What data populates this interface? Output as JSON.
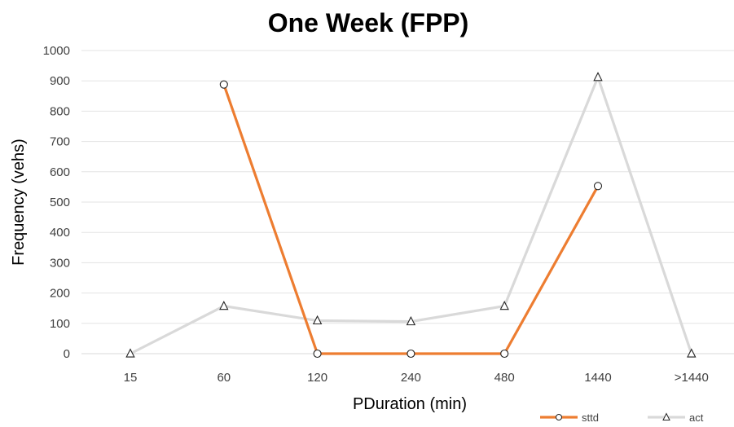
{
  "chart_data": {
    "type": "line",
    "title": "One Week (FPP)",
    "xlabel": "PDuration (min)",
    "ylabel": "Frequency (vehs)",
    "categories": [
      "15",
      "60",
      "120",
      "240",
      "480",
      "1440",
      ">1440"
    ],
    "ylim": [
      0,
      1000
    ],
    "yticks": [
      0,
      100,
      200,
      300,
      400,
      500,
      600,
      700,
      800,
      900,
      1000
    ],
    "grid": true,
    "legend_position": "bottom-right",
    "series": [
      {
        "name": "sttd",
        "values": [
          null,
          888,
          0,
          0,
          0,
          553,
          null
        ],
        "color": "#ED7D31",
        "marker": "circle"
      },
      {
        "name": "act",
        "values": [
          0,
          157,
          109,
          106,
          157,
          912,
          0
        ],
        "color": "#D9D9D9",
        "marker": "triangle"
      }
    ]
  }
}
